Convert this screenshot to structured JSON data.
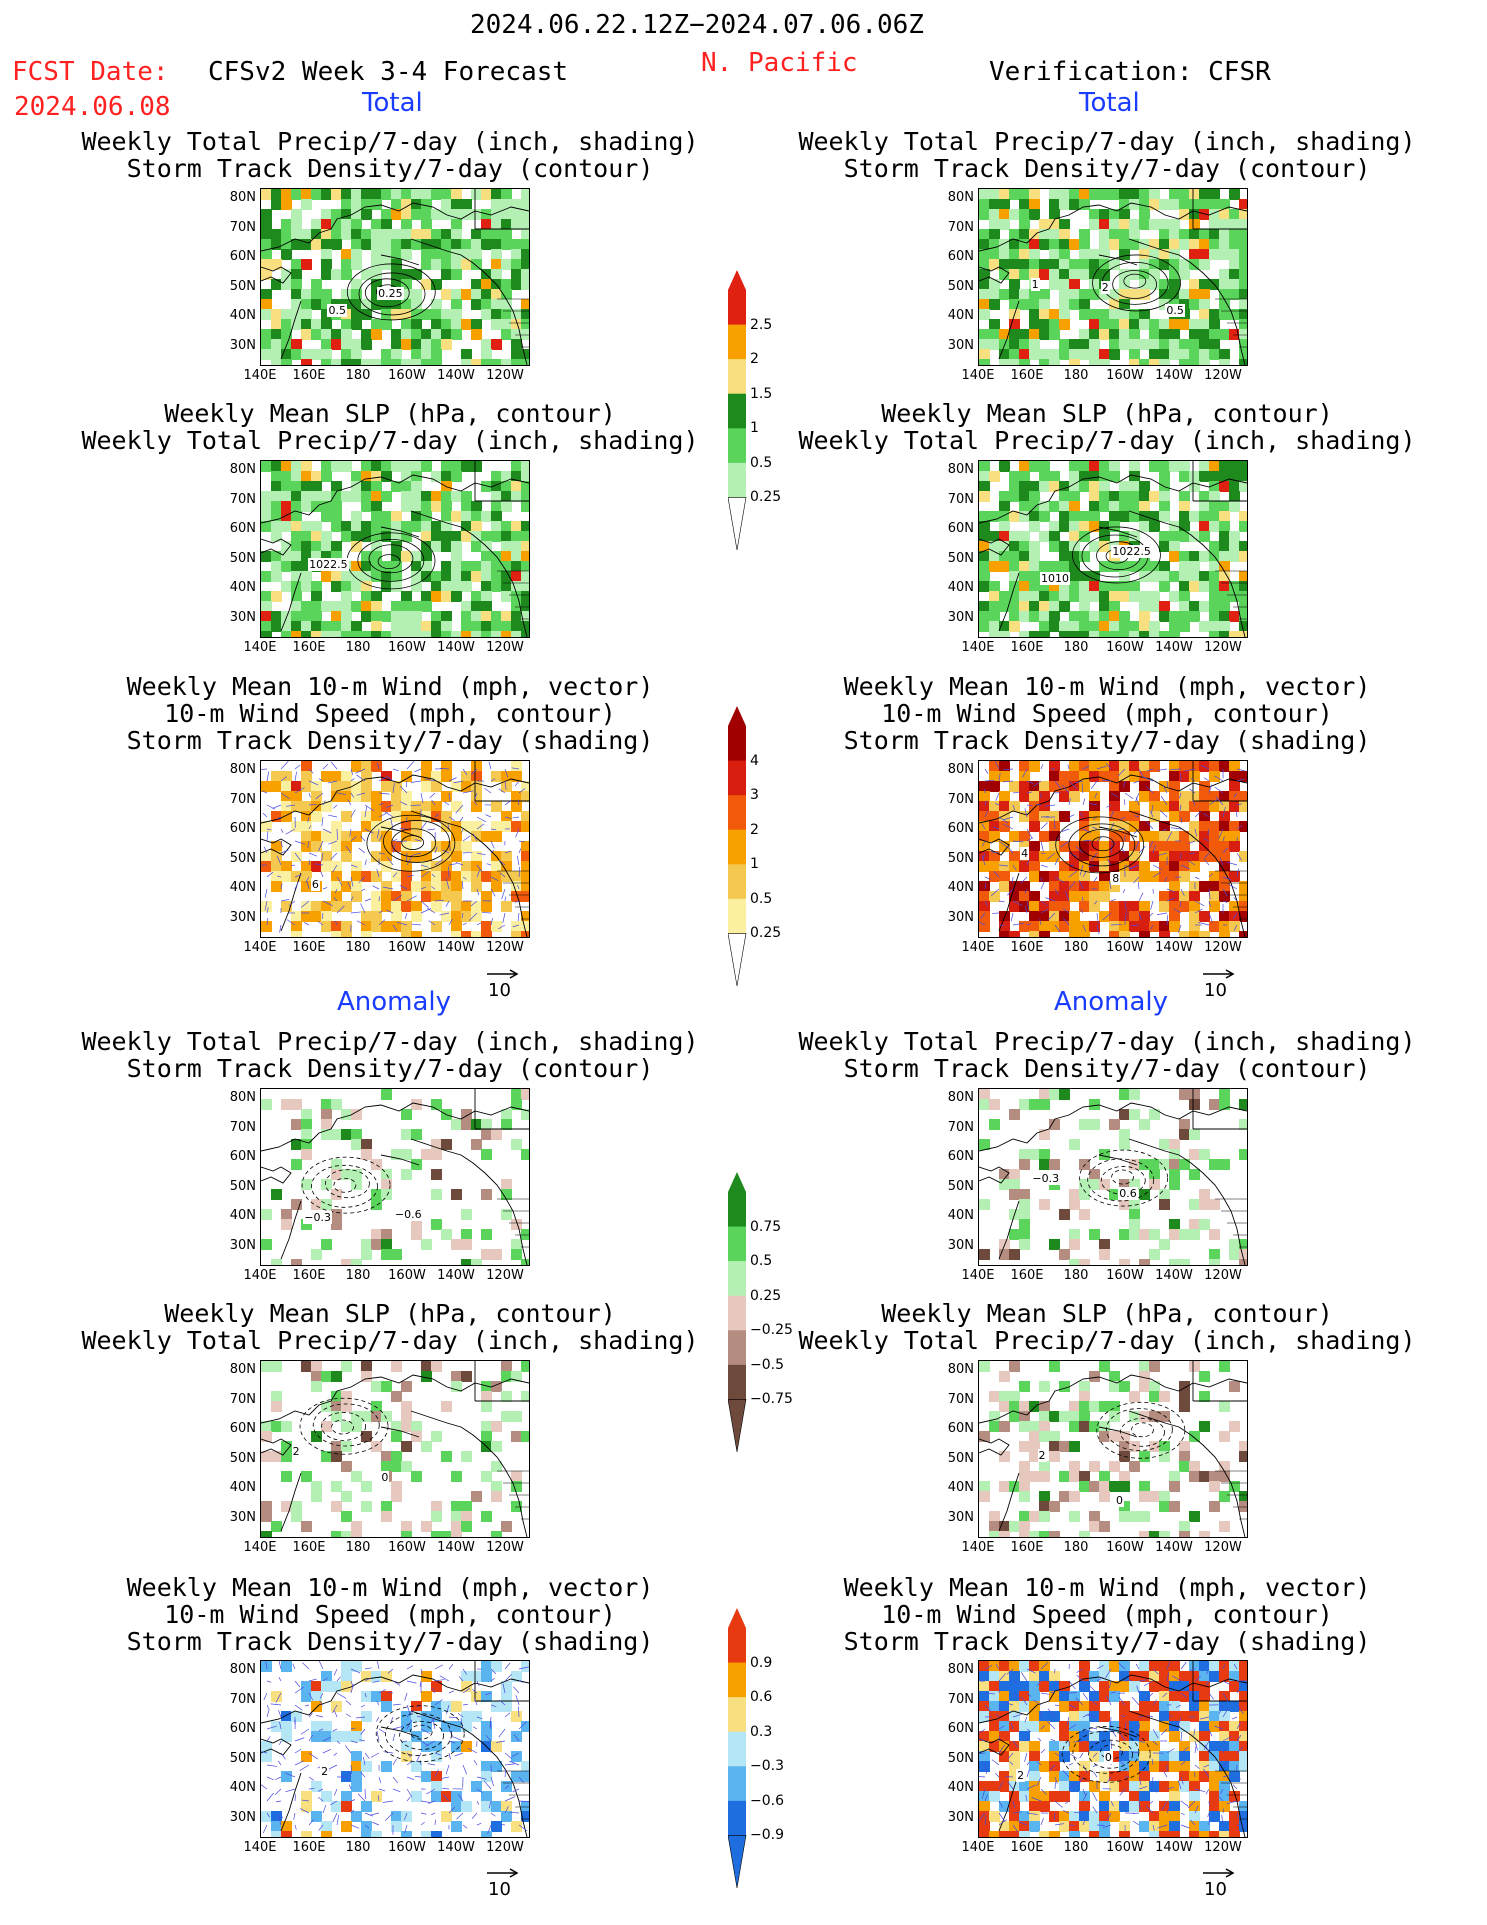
{
  "header": {
    "date_range": "2024.06.22.12Z−2024.07.06.06Z",
    "region": "N. Pacific",
    "fcst_label": "FCST Date:",
    "fcst_date": "2024.06.08",
    "model_title": "CFSv2 Week 3-4 Forecast",
    "verification": "Verification: CFSR"
  },
  "sections": {
    "total": "Total",
    "anomaly": "Anomaly"
  },
  "titles": {
    "precip_storm": [
      "Weekly Total Precip/7-day (inch, shading)",
      "Storm Track Density/7-day (contour)"
    ],
    "slp_precip": [
      "Weekly Mean SLP (hPa, contour)",
      "Weekly Total Precip/7-day (inch, shading)"
    ],
    "wind_storm": [
      "Weekly Mean 10-m Wind (mph, vector)",
      "10-m Wind Speed (mph, contour)",
      "Storm Track Density/7-day (shading)"
    ]
  },
  "axes": {
    "lat": [
      "80N",
      "70N",
      "60N",
      "50N",
      "40N",
      "30N"
    ],
    "lon": [
      "140E",
      "160E",
      "180",
      "160W",
      "140W",
      "120W"
    ]
  },
  "vector_ref": "10",
  "colorbars": {
    "precip_total": {
      "labels": [
        "2.5",
        "2",
        "1.5",
        "1",
        "0.5",
        "0.25"
      ],
      "colors": [
        "#e02010",
        "#f7a000",
        "#f8e080",
        "#1e8a1e",
        "#5ad45a",
        "#b4f0b4"
      ]
    },
    "storm_total": {
      "labels": [
        "4",
        "3",
        "2",
        "1",
        "0.5",
        "0.25"
      ],
      "colors": [
        "#a00000",
        "#d81e0e",
        "#f05a0a",
        "#f7a000",
        "#f5c850",
        "#faf0a0"
      ]
    },
    "precip_anom": {
      "labels": [
        "0.75",
        "0.5",
        "0.25",
        "−0.25",
        "−0.5",
        "−0.75"
      ],
      "colors": [
        "#1e8a1e",
        "#5ad45a",
        "#b4f0b4",
        "#e6c8be",
        "#b48c80",
        "#6e4a3c"
      ]
    },
    "storm_anom": {
      "labels": [
        "0.9",
        "0.6",
        "0.3",
        "−0.3",
        "−0.6",
        "−0.9"
      ],
      "colors": [
        "#e83a10",
        "#f7a000",
        "#f8e080",
        "#b4e6f5",
        "#5ab4f0",
        "#1e6ee0"
      ]
    }
  },
  "panels": [
    {
      "id": "fcst-total-precip-storm",
      "scheme": "precip",
      "labels": [
        "0.5",
        "0.25"
      ]
    },
    {
      "id": "fcst-total-slp-precip",
      "scheme": "precip",
      "labels": [
        "1022.5"
      ]
    },
    {
      "id": "fcst-total-wind-storm",
      "scheme": "storm",
      "labels": [
        "6"
      ]
    },
    {
      "id": "fcst-anom-precip-storm",
      "scheme": "anom_precip",
      "labels": [
        "−0.3",
        "−0.6"
      ]
    },
    {
      "id": "fcst-anom-slp-precip",
      "scheme": "anom_precip",
      "labels": [
        "2",
        "0"
      ]
    },
    {
      "id": "fcst-anom-wind-storm",
      "scheme": "anom_storm_fcst",
      "labels": [
        "2"
      ]
    },
    {
      "id": "verif-total-precip-storm",
      "scheme": "precip",
      "labels": [
        "1",
        "2",
        "0.5"
      ]
    },
    {
      "id": "verif-total-slp-precip",
      "scheme": "precip",
      "labels": [
        "1010",
        "1022.5"
      ]
    },
    {
      "id": "verif-total-wind-storm",
      "scheme": "storm_strong",
      "labels": [
        "4",
        "8"
      ]
    },
    {
      "id": "verif-anom-precip-storm",
      "scheme": "anom_precip",
      "labels": [
        "−0.3",
        "0.6"
      ]
    },
    {
      "id": "verif-anom-slp-precip",
      "scheme": "anom_precip_verif",
      "labels": [
        "2",
        "0"
      ]
    },
    {
      "id": "verif-anom-wind-storm",
      "scheme": "anom_storm_verif",
      "labels": [
        "2",
        "0"
      ]
    }
  ]
}
